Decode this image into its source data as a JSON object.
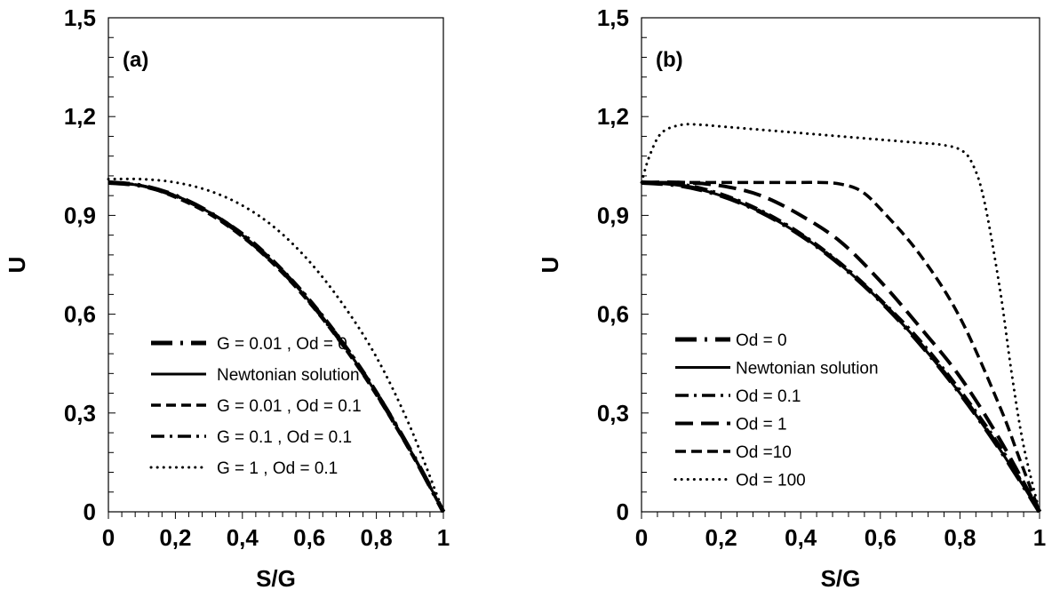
{
  "chart_data": [
    {
      "type": "line",
      "panel_label": "(a)",
      "xlabel": "S/G",
      "ylabel": "U",
      "xlim": [
        0,
        1
      ],
      "ylim": [
        0,
        1.5
      ],
      "xticks": [
        "0",
        "0,2",
        "0,4",
        "0,6",
        "0,8",
        "1"
      ],
      "yticks": [
        "0",
        "0,3",
        "0,6",
        "0,9",
        "1,2",
        "1,5"
      ],
      "grid": false,
      "legend_position": "center-left",
      "series": [
        {
          "name": "G = 0.01 , Od = 0",
          "style": "long-dash-dot",
          "x": [
            0,
            0.1,
            0.2,
            0.3,
            0.4,
            0.5,
            0.6,
            0.7,
            0.8,
            0.9,
            1.0
          ],
          "y": [
            1.0,
            0.99,
            0.96,
            0.91,
            0.84,
            0.75,
            0.64,
            0.51,
            0.36,
            0.19,
            0.0
          ]
        },
        {
          "name": "Newtonian solution",
          "style": "solid",
          "x": [
            0,
            0.1,
            0.2,
            0.3,
            0.4,
            0.5,
            0.6,
            0.7,
            0.8,
            0.9,
            1.0
          ],
          "y": [
            1.0,
            0.99,
            0.96,
            0.91,
            0.84,
            0.75,
            0.64,
            0.51,
            0.36,
            0.19,
            0.0
          ]
        },
        {
          "name": "G = 0.01 , Od = 0.1",
          "style": "short-dash",
          "x": [
            0,
            0.1,
            0.2,
            0.3,
            0.4,
            0.5,
            0.6,
            0.7,
            0.8,
            0.9,
            1.0
          ],
          "y": [
            1.0,
            0.99,
            0.955,
            0.905,
            0.835,
            0.745,
            0.635,
            0.505,
            0.355,
            0.185,
            0.0
          ]
        },
        {
          "name": "G = 0.1 , Od = 0.1",
          "style": "dash-dot",
          "x": [
            0,
            0.1,
            0.2,
            0.3,
            0.4,
            0.5,
            0.6,
            0.7,
            0.8,
            0.9,
            1.0
          ],
          "y": [
            1.0,
            0.99,
            0.96,
            0.91,
            0.845,
            0.755,
            0.645,
            0.515,
            0.365,
            0.19,
            0.0
          ]
        },
        {
          "name": "G = 1 , Od = 0.1",
          "style": "dotted",
          "x": [
            0,
            0.1,
            0.2,
            0.3,
            0.4,
            0.5,
            0.6,
            0.7,
            0.8,
            0.9,
            1.0
          ],
          "y": [
            1.01,
            1.01,
            1.0,
            0.975,
            0.93,
            0.86,
            0.76,
            0.63,
            0.47,
            0.26,
            0.0
          ]
        }
      ]
    },
    {
      "type": "line",
      "panel_label": "(b)",
      "xlabel": "S/G",
      "ylabel": "U",
      "xlim": [
        0,
        1
      ],
      "ylim": [
        0,
        1.5
      ],
      "xticks": [
        "0",
        "0,2",
        "0,4",
        "0,6",
        "0,8",
        "1"
      ],
      "yticks": [
        "0",
        "0,3",
        "0,6",
        "0,9",
        "1,2",
        "1,5"
      ],
      "grid": false,
      "legend_position": "bottom-left",
      "series": [
        {
          "name": "Od = 0",
          "style": "long-dash-dot",
          "x": [
            0,
            0.1,
            0.2,
            0.3,
            0.4,
            0.5,
            0.6,
            0.7,
            0.8,
            0.9,
            1.0
          ],
          "y": [
            1.0,
            0.99,
            0.96,
            0.91,
            0.84,
            0.75,
            0.64,
            0.51,
            0.36,
            0.19,
            0.0
          ]
        },
        {
          "name": "Newtonian solution",
          "style": "solid",
          "x": [
            0,
            0.1,
            0.2,
            0.3,
            0.4,
            0.5,
            0.6,
            0.7,
            0.8,
            0.9,
            1.0
          ],
          "y": [
            1.0,
            0.99,
            0.96,
            0.91,
            0.84,
            0.75,
            0.64,
            0.51,
            0.36,
            0.19,
            0.0
          ]
        },
        {
          "name": "Od = 0.1",
          "style": "dash-dot",
          "x": [
            0,
            0.1,
            0.2,
            0.3,
            0.4,
            0.5,
            0.6,
            0.7,
            0.8,
            0.9,
            1.0
          ],
          "y": [
            1.0,
            0.995,
            0.965,
            0.915,
            0.845,
            0.755,
            0.645,
            0.52,
            0.37,
            0.2,
            0.0
          ]
        },
        {
          "name": "Od = 1",
          "style": "long-dash",
          "x": [
            0,
            0.1,
            0.2,
            0.3,
            0.4,
            0.5,
            0.6,
            0.7,
            0.8,
            0.9,
            1.0
          ],
          "y": [
            1.0,
            1.0,
            0.99,
            0.96,
            0.9,
            0.82,
            0.7,
            0.56,
            0.41,
            0.22,
            0.0
          ]
        },
        {
          "name": "Od =10",
          "style": "dash",
          "x": [
            0,
            0.1,
            0.2,
            0.3,
            0.4,
            0.45,
            0.5,
            0.55,
            0.6,
            0.7,
            0.8,
            0.9,
            0.95,
            1.0
          ],
          "y": [
            1.0,
            1.0,
            1.0,
            1.0,
            1.0,
            1.0,
            0.995,
            0.975,
            0.92,
            0.78,
            0.59,
            0.32,
            0.16,
            0.0
          ]
        },
        {
          "name": "Od = 100",
          "style": "dotted",
          "x": [
            0,
            0.02,
            0.05,
            0.1,
            0.15,
            0.2,
            0.3,
            0.4,
            0.5,
            0.6,
            0.7,
            0.75,
            0.8,
            0.83,
            0.86,
            0.9,
            0.93,
            0.96,
            1.0
          ],
          "y": [
            1.0,
            1.08,
            1.15,
            1.175,
            1.175,
            1.17,
            1.16,
            1.15,
            1.14,
            1.13,
            1.12,
            1.115,
            1.1,
            1.06,
            0.95,
            0.68,
            0.42,
            0.2,
            0.0
          ]
        }
      ]
    }
  ]
}
